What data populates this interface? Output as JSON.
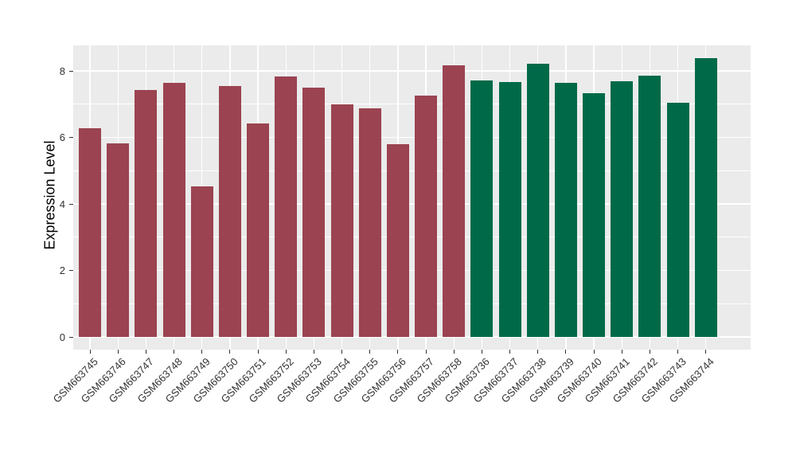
{
  "chart_data": {
    "type": "bar",
    "title": "",
    "xlabel": "",
    "ylabel": "Expression Level",
    "categories": [
      "GSM663745",
      "GSM663746",
      "GSM663747",
      "GSM663748",
      "GSM663749",
      "GSM663750",
      "GSM663751",
      "GSM663752",
      "GSM663753",
      "GSM663754",
      "GSM663755",
      "GSM663756",
      "GSM663757",
      "GSM663758",
      "GSM663736",
      "GSM663737",
      "GSM663738",
      "GSM663739",
      "GSM663740",
      "GSM663741",
      "GSM663742",
      "GSM663743",
      "GSM663744"
    ],
    "values": [
      6.29,
      5.83,
      7.42,
      7.65,
      4.53,
      7.56,
      6.43,
      7.84,
      7.49,
      7.0,
      6.88,
      5.8,
      7.27,
      8.18,
      7.72,
      7.67,
      8.22,
      7.64,
      7.33,
      7.7,
      7.85,
      7.05,
      8.38
    ],
    "bar_colors": [
      "#9B4351",
      "#9B4351",
      "#9B4351",
      "#9B4351",
      "#9B4351",
      "#9B4351",
      "#9B4351",
      "#9B4351",
      "#9B4351",
      "#9B4351",
      "#9B4351",
      "#9B4351",
      "#9B4351",
      "#9B4351",
      "#006A48",
      "#006A48",
      "#006A48",
      "#006A48",
      "#006A48",
      "#006A48",
      "#006A48",
      "#006A48",
      "#006A48"
    ],
    "group_colors": {
      "left_group": "#9B4351",
      "right_group": "#006A48"
    },
    "ylim": [
      -0.38,
      8.77
    ],
    "yticks": [
      0,
      2,
      4,
      6,
      8
    ],
    "ytick_labels": [
      "0",
      "2",
      "4",
      "6",
      "8"
    ],
    "yticks_minor": [
      1,
      3,
      5,
      7
    ],
    "x_tick_rotation": 45,
    "grid": true,
    "legend": "none",
    "panel_bg": "#EBEBEB",
    "grid_color": "#FFFFFF"
  }
}
